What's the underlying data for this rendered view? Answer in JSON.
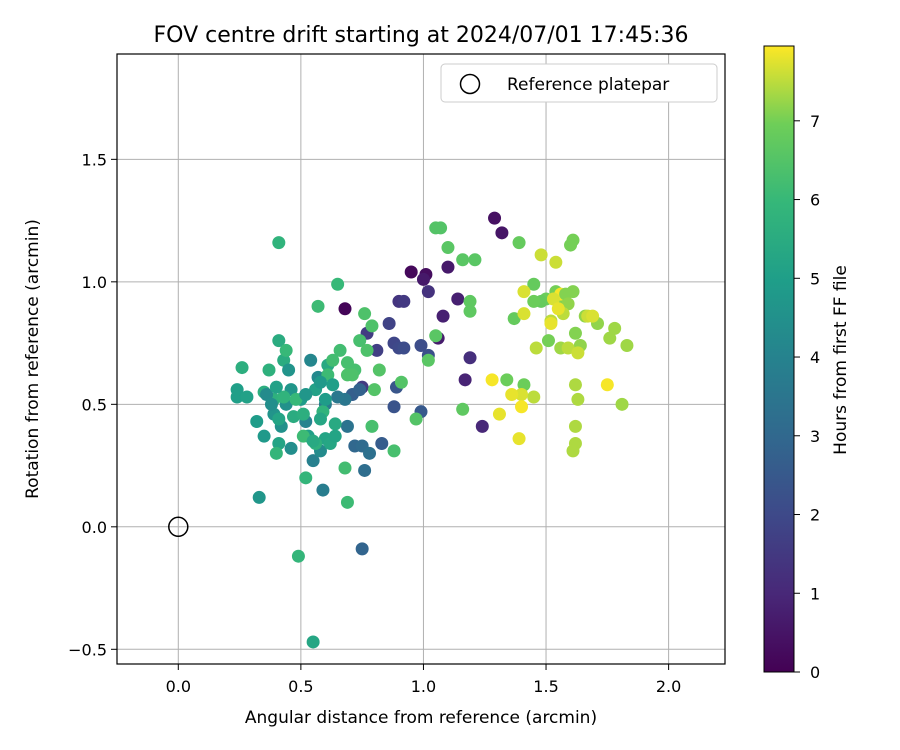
{
  "chart_data": {
    "type": "scatter",
    "title": "FOV centre drift starting at 2024/07/01 17:45:36",
    "xlabel": "Angular distance from reference (arcmin)",
    "ylabel": "Rotation from reference (arcmin)",
    "xlim": [
      -0.25,
      2.23
    ],
    "ylim": [
      -0.56,
      1.93
    ],
    "x_ticks": [
      0.0,
      0.5,
      1.0,
      1.5,
      2.0
    ],
    "x_tick_labels": [
      "0.0",
      "0.5",
      "1.0",
      "1.5",
      "2.0"
    ],
    "y_ticks": [
      -0.5,
      0.0,
      0.5,
      1.0,
      1.5
    ],
    "y_tick_labels": [
      "−0.5",
      "0.0",
      "0.5",
      "1.0",
      "1.5"
    ],
    "grid": true,
    "legend": {
      "placement": "top-right",
      "entries": [
        "Reference platepar"
      ]
    },
    "reference_point": {
      "x": 0.0,
      "y": 0.0,
      "label": "Reference platepar"
    },
    "colorbar": {
      "label": "Hours from first FF file",
      "range": [
        0,
        7.95
      ],
      "colormap": "viridis",
      "ticks": [
        0,
        1,
        2,
        3,
        4,
        5,
        6,
        7
      ],
      "tick_labels": [
        "0",
        "1",
        "2",
        "3",
        "4",
        "5",
        "6",
        "7"
      ]
    },
    "points": [
      {
        "x": 0.68,
        "y": 0.89,
        "h": 0.1
      },
      {
        "x": 0.95,
        "y": 1.04,
        "h": 0.2
      },
      {
        "x": 1.01,
        "y": 1.03,
        "h": 0.3
      },
      {
        "x": 1.29,
        "y": 1.26,
        "h": 0.4
      },
      {
        "x": 1.32,
        "y": 1.2,
        "h": 0.5
      },
      {
        "x": 1.1,
        "y": 1.06,
        "h": 0.6
      },
      {
        "x": 1.0,
        "y": 1.01,
        "h": 0.6
      },
      {
        "x": 1.06,
        "y": 0.77,
        "h": 0.7
      },
      {
        "x": 1.08,
        "y": 0.86,
        "h": 0.8
      },
      {
        "x": 1.14,
        "y": 0.93,
        "h": 0.8
      },
      {
        "x": 1.17,
        "y": 0.6,
        "h": 0.9
      },
      {
        "x": 1.24,
        "y": 0.41,
        "h": 1.0
      },
      {
        "x": 1.19,
        "y": 0.69,
        "h": 1.2
      },
      {
        "x": 1.02,
        "y": 0.96,
        "h": 1.3
      },
      {
        "x": 0.9,
        "y": 0.92,
        "h": 1.4
      },
      {
        "x": 0.92,
        "y": 0.92,
        "h": 1.5
      },
      {
        "x": 0.75,
        "y": 0.57,
        "h": 1.5
      },
      {
        "x": 0.77,
        "y": 0.79,
        "h": 1.6
      },
      {
        "x": 0.81,
        "y": 0.72,
        "h": 1.7
      },
      {
        "x": 0.86,
        "y": 0.83,
        "h": 1.8
      },
      {
        "x": 0.88,
        "y": 0.75,
        "h": 1.9
      },
      {
        "x": 0.9,
        "y": 0.73,
        "h": 2.0
      },
      {
        "x": 0.92,
        "y": 0.73,
        "h": 2.1
      },
      {
        "x": 0.99,
        "y": 0.74,
        "h": 2.1
      },
      {
        "x": 1.02,
        "y": 0.7,
        "h": 2.2
      },
      {
        "x": 0.88,
        "y": 0.49,
        "h": 2.3
      },
      {
        "x": 0.89,
        "y": 0.57,
        "h": 2.4
      },
      {
        "x": 0.99,
        "y": 0.47,
        "h": 2.5
      },
      {
        "x": 0.83,
        "y": 0.34,
        "h": 2.6
      },
      {
        "x": 0.71,
        "y": 0.54,
        "h": 2.7
      },
      {
        "x": 0.74,
        "y": 0.56,
        "h": 2.8
      },
      {
        "x": 0.75,
        "y": -0.09,
        "h": 2.9
      },
      {
        "x": 0.72,
        "y": 0.33,
        "h": 3.0
      },
      {
        "x": 0.75,
        "y": 0.33,
        "h": 3.1
      },
      {
        "x": 0.76,
        "y": 0.23,
        "h": 3.2
      },
      {
        "x": 0.78,
        "y": 0.3,
        "h": 3.3
      },
      {
        "x": 0.69,
        "y": 0.41,
        "h": 3.4
      },
      {
        "x": 0.68,
        "y": 0.52,
        "h": 3.5
      },
      {
        "x": 0.65,
        "y": 0.53,
        "h": 3.6
      },
      {
        "x": 0.6,
        "y": 0.5,
        "h": 3.7
      },
      {
        "x": 0.59,
        "y": 0.15,
        "h": 3.8
      },
      {
        "x": 0.55,
        "y": 0.27,
        "h": 3.9
      },
      {
        "x": 0.52,
        "y": 0.43,
        "h": 4.0
      },
      {
        "x": 0.54,
        "y": 0.68,
        "h": 4.1
      },
      {
        "x": 0.57,
        "y": 0.61,
        "h": 4.2
      },
      {
        "x": 0.58,
        "y": 0.31,
        "h": 4.3
      },
      {
        "x": 0.46,
        "y": 0.32,
        "h": 4.4
      },
      {
        "x": 0.42,
        "y": 0.41,
        "h": 4.5
      },
      {
        "x": 0.39,
        "y": 0.46,
        "h": 4.6
      },
      {
        "x": 0.33,
        "y": 0.12,
        "h": 4.7
      },
      {
        "x": 0.35,
        "y": 0.37,
        "h": 4.8
      },
      {
        "x": 0.32,
        "y": 0.43,
        "h": 4.9
      },
      {
        "x": 0.24,
        "y": 0.53,
        "h": 5.0
      },
      {
        "x": 0.24,
        "y": 0.56,
        "h": 5.0
      },
      {
        "x": 0.28,
        "y": 0.53,
        "h": 5.1
      },
      {
        "x": 0.41,
        "y": 0.34,
        "h": 5.2
      },
      {
        "x": 0.55,
        "y": -0.47,
        "h": 5.3
      },
      {
        "x": 0.61,
        "y": 0.66,
        "h": 5.4
      },
      {
        "x": 0.43,
        "y": 0.68,
        "h": 5.5
      },
      {
        "x": 0.41,
        "y": 0.76,
        "h": 5.5
      },
      {
        "x": 0.26,
        "y": 0.65,
        "h": 5.6
      },
      {
        "x": 0.37,
        "y": 0.64,
        "h": 5.7
      },
      {
        "x": 0.41,
        "y": 1.16,
        "h": 5.8
      },
      {
        "x": 0.49,
        "y": -0.12,
        "h": 5.9
      },
      {
        "x": 0.52,
        "y": 0.2,
        "h": 5.9
      },
      {
        "x": 0.65,
        "y": 0.99,
        "h": 6.0
      },
      {
        "x": 0.57,
        "y": 0.9,
        "h": 6.1
      },
      {
        "x": 0.69,
        "y": 0.1,
        "h": 6.1
      },
      {
        "x": 0.68,
        "y": 0.24,
        "h": 6.2
      },
      {
        "x": 0.88,
        "y": 0.31,
        "h": 6.3
      },
      {
        "x": 0.79,
        "y": 0.41,
        "h": 6.3
      },
      {
        "x": 0.79,
        "y": 0.82,
        "h": 6.4
      },
      {
        "x": 0.76,
        "y": 0.87,
        "h": 6.4
      },
      {
        "x": 0.97,
        "y": 0.44,
        "h": 6.5
      },
      {
        "x": 1.05,
        "y": 1.22,
        "h": 6.5
      },
      {
        "x": 1.07,
        "y": 1.22,
        "h": 6.5
      },
      {
        "x": 1.1,
        "y": 1.14,
        "h": 6.6
      },
      {
        "x": 1.16,
        "y": 1.09,
        "h": 6.6
      },
      {
        "x": 1.21,
        "y": 1.09,
        "h": 6.6
      },
      {
        "x": 1.19,
        "y": 0.92,
        "h": 6.7
      },
      {
        "x": 1.19,
        "y": 0.88,
        "h": 6.7
      },
      {
        "x": 1.16,
        "y": 0.48,
        "h": 6.7
      },
      {
        "x": 1.39,
        "y": 1.16,
        "h": 6.8
      },
      {
        "x": 1.45,
        "y": 0.99,
        "h": 6.8
      },
      {
        "x": 1.37,
        "y": 0.85,
        "h": 6.8
      },
      {
        "x": 1.34,
        "y": 0.6,
        "h": 6.9
      },
      {
        "x": 1.41,
        "y": 0.58,
        "h": 6.9
      },
      {
        "x": 1.5,
        "y": 0.93,
        "h": 6.9
      },
      {
        "x": 1.54,
        "y": 0.96,
        "h": 7.0
      },
      {
        "x": 1.6,
        "y": 1.15,
        "h": 7.0
      },
      {
        "x": 1.61,
        "y": 1.17,
        "h": 7.0
      },
      {
        "x": 1.57,
        "y": 0.91,
        "h": 7.1
      },
      {
        "x": 1.61,
        "y": 0.96,
        "h": 7.1
      },
      {
        "x": 1.62,
        "y": 0.79,
        "h": 7.1
      },
      {
        "x": 1.64,
        "y": 0.74,
        "h": 7.2
      },
      {
        "x": 1.66,
        "y": 0.86,
        "h": 7.2
      },
      {
        "x": 1.71,
        "y": 0.83,
        "h": 7.2
      },
      {
        "x": 1.76,
        "y": 0.77,
        "h": 7.3
      },
      {
        "x": 1.78,
        "y": 0.81,
        "h": 7.3
      },
      {
        "x": 1.83,
        "y": 0.74,
        "h": 7.3
      },
      {
        "x": 1.81,
        "y": 0.5,
        "h": 7.3
      },
      {
        "x": 1.62,
        "y": 0.41,
        "h": 7.4
      },
      {
        "x": 1.62,
        "y": 0.34,
        "h": 7.4
      },
      {
        "x": 1.61,
        "y": 0.31,
        "h": 7.4
      },
      {
        "x": 1.63,
        "y": 0.52,
        "h": 7.4
      },
      {
        "x": 1.45,
        "y": 0.53,
        "h": 7.5
      },
      {
        "x": 1.46,
        "y": 0.73,
        "h": 7.5
      },
      {
        "x": 1.52,
        "y": 0.84,
        "h": 7.5
      },
      {
        "x": 1.48,
        "y": 1.11,
        "h": 7.6
      },
      {
        "x": 1.54,
        "y": 1.08,
        "h": 7.6
      },
      {
        "x": 1.41,
        "y": 0.96,
        "h": 7.7
      },
      {
        "x": 1.41,
        "y": 0.87,
        "h": 7.7
      },
      {
        "x": 1.4,
        "y": 0.54,
        "h": 7.7
      },
      {
        "x": 1.39,
        "y": 0.36,
        "h": 7.8
      },
      {
        "x": 1.36,
        "y": 0.54,
        "h": 7.8
      },
      {
        "x": 1.31,
        "y": 0.46,
        "h": 7.8
      },
      {
        "x": 1.28,
        "y": 0.6,
        "h": 7.9
      },
      {
        "x": 1.4,
        "y": 0.49,
        "h": 7.9
      },
      {
        "x": 1.75,
        "y": 0.58,
        "h": 7.9
      },
      {
        "x": 1.56,
        "y": 0.95,
        "h": 7.9
      },
      {
        "x": 0.44,
        "y": 0.5,
        "h": 4.5
      },
      {
        "x": 0.46,
        "y": 0.56,
        "h": 4.7
      },
      {
        "x": 0.5,
        "y": 0.52,
        "h": 4.9
      },
      {
        "x": 0.53,
        "y": 0.37,
        "h": 5.0
      },
      {
        "x": 0.56,
        "y": 0.56,
        "h": 5.1
      },
      {
        "x": 0.6,
        "y": 0.36,
        "h": 5.2
      },
      {
        "x": 0.62,
        "y": 0.34,
        "h": 5.3
      },
      {
        "x": 0.64,
        "y": 0.42,
        "h": 5.4
      },
      {
        "x": 0.47,
        "y": 0.45,
        "h": 5.5
      },
      {
        "x": 0.51,
        "y": 0.46,
        "h": 5.6
      },
      {
        "x": 0.56,
        "y": 0.34,
        "h": 5.7
      },
      {
        "x": 0.59,
        "y": 0.47,
        "h": 5.8
      },
      {
        "x": 0.35,
        "y": 0.55,
        "h": 5.6
      },
      {
        "x": 0.39,
        "y": 0.52,
        "h": 5.7
      },
      {
        "x": 0.43,
        "y": 0.53,
        "h": 5.8
      },
      {
        "x": 0.4,
        "y": 0.3,
        "h": 5.9
      },
      {
        "x": 0.44,
        "y": 0.72,
        "h": 6.0
      },
      {
        "x": 0.48,
        "y": 0.52,
        "h": 6.0
      },
      {
        "x": 0.51,
        "y": 0.37,
        "h": 6.1
      },
      {
        "x": 0.61,
        "y": 0.62,
        "h": 6.1
      },
      {
        "x": 0.63,
        "y": 0.68,
        "h": 6.2
      },
      {
        "x": 0.66,
        "y": 0.72,
        "h": 6.2
      },
      {
        "x": 0.69,
        "y": 0.67,
        "h": 6.3
      },
      {
        "x": 0.72,
        "y": 0.64,
        "h": 6.3
      },
      {
        "x": 0.74,
        "y": 0.76,
        "h": 6.3
      },
      {
        "x": 0.69,
        "y": 0.62,
        "h": 6.4
      },
      {
        "x": 0.71,
        "y": 0.62,
        "h": 6.4
      },
      {
        "x": 0.77,
        "y": 0.72,
        "h": 6.4
      },
      {
        "x": 0.82,
        "y": 0.64,
        "h": 6.5
      },
      {
        "x": 0.8,
        "y": 0.56,
        "h": 6.5
      },
      {
        "x": 0.91,
        "y": 0.59,
        "h": 6.5
      },
      {
        "x": 1.02,
        "y": 0.68,
        "h": 6.6
      },
      {
        "x": 1.05,
        "y": 0.78,
        "h": 6.6
      },
      {
        "x": 1.48,
        "y": 0.92,
        "h": 6.8
      },
      {
        "x": 1.45,
        "y": 0.92,
        "h": 6.9
      },
      {
        "x": 1.51,
        "y": 0.76,
        "h": 7.0
      },
      {
        "x": 1.58,
        "y": 0.95,
        "h": 7.1
      },
      {
        "x": 1.59,
        "y": 0.91,
        "h": 7.2
      },
      {
        "x": 1.56,
        "y": 0.73,
        "h": 7.3
      },
      {
        "x": 1.62,
        "y": 0.58,
        "h": 7.4
      },
      {
        "x": 1.57,
        "y": 0.87,
        "h": 7.5
      },
      {
        "x": 1.59,
        "y": 0.73,
        "h": 7.5
      },
      {
        "x": 1.63,
        "y": 0.71,
        "h": 7.6
      },
      {
        "x": 1.67,
        "y": 0.86,
        "h": 7.6
      },
      {
        "x": 1.69,
        "y": 0.86,
        "h": 7.7
      },
      {
        "x": 1.53,
        "y": 0.93,
        "h": 7.7
      },
      {
        "x": 1.55,
        "y": 0.89,
        "h": 7.8
      },
      {
        "x": 1.52,
        "y": 0.83,
        "h": 7.8
      },
      {
        "x": 0.36,
        "y": 0.54,
        "h": 4.3
      },
      {
        "x": 0.38,
        "y": 0.5,
        "h": 4.4
      },
      {
        "x": 0.45,
        "y": 0.64,
        "h": 4.6
      },
      {
        "x": 0.52,
        "y": 0.54,
        "h": 4.7
      },
      {
        "x": 0.58,
        "y": 0.59,
        "h": 4.8
      },
      {
        "x": 0.6,
        "y": 0.52,
        "h": 4.9
      },
      {
        "x": 0.63,
        "y": 0.58,
        "h": 5.0
      },
      {
        "x": 0.64,
        "y": 0.37,
        "h": 5.2
      },
      {
        "x": 0.58,
        "y": 0.44,
        "h": 5.3
      },
      {
        "x": 0.55,
        "y": 0.35,
        "h": 5.4
      },
      {
        "x": 0.4,
        "y": 0.57,
        "h": 5.1
      },
      {
        "x": 0.41,
        "y": 0.44,
        "h": 5.2
      }
    ]
  }
}
